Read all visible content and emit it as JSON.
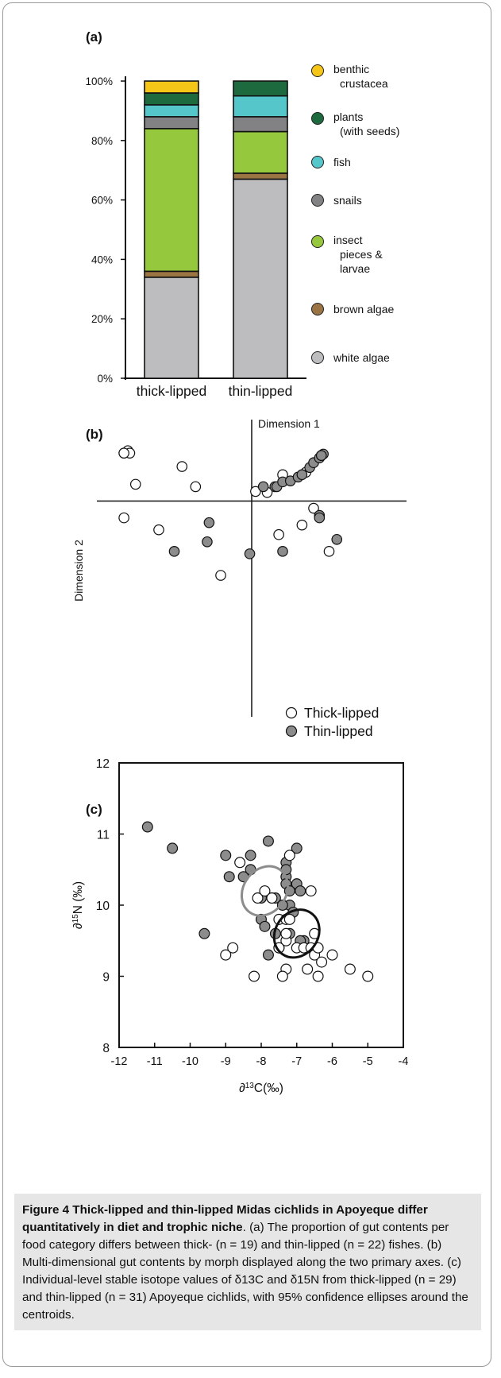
{
  "panels": {
    "a": "(a)",
    "b": "(b)",
    "c": "(c)"
  },
  "chart_data": [
    {
      "type": "bar",
      "stacked": true,
      "categories": [
        "thick-lipped",
        "thin-lipped"
      ],
      "yticks": [
        "0%",
        "20%",
        "40%",
        "60%",
        "80%",
        "100%"
      ],
      "ylim": [
        0,
        100
      ],
      "series": [
        {
          "name": "white algae",
          "color": "#bdbdbf",
          "values": [
            34,
            67
          ]
        },
        {
          "name": "brown algae",
          "color": "#9a7443",
          "values": [
            2,
            2
          ]
        },
        {
          "name": "insect pieces & larvae",
          "color": "#95c83c",
          "values": [
            48,
            14
          ]
        },
        {
          "name": "snails",
          "color": "#828284",
          "values": [
            4,
            5
          ]
        },
        {
          "name": "fish",
          "color": "#55c6c9",
          "values": [
            4,
            7
          ]
        },
        {
          "name": "plants (with seeds)",
          "color": "#1e6a3f",
          "values": [
            4,
            5
          ]
        },
        {
          "name": "benthic crustacea",
          "color": "#f5c518",
          "values": [
            4,
            0
          ]
        }
      ],
      "legend": [
        {
          "lines": [
            "benthic",
            "crustacea"
          ],
          "color": "#f5c518"
        },
        {
          "lines": [
            "plants",
            "(with seeds)"
          ],
          "color": "#1e6a3f"
        },
        {
          "lines": [
            "fish"
          ],
          "color": "#55c6c9"
        },
        {
          "lines": [
            "snails"
          ],
          "color": "#828284"
        },
        {
          "lines": [
            "insect",
            "pieces &",
            "larvae"
          ],
          "color": "#95c83c"
        },
        {
          "lines": [
            "brown algae"
          ],
          "color": "#9a7443"
        },
        {
          "lines": [
            "white algae"
          ],
          "color": "#bdbdbf"
        }
      ],
      "legend_position": "right"
    },
    {
      "type": "scatter",
      "xlabel": "Dimension 1",
      "ylabel": "Dimension 2",
      "xlim": [
        -4,
        4
      ],
      "ylim": [
        -4.5,
        1.5
      ],
      "legend_position": "bottom-right",
      "series": [
        {
          "name": "Thick-lipped",
          "fill": "#ffffff",
          "x": [
            -3.3,
            -3.2,
            -3.15,
            -3.3,
            -3.0,
            -1.8,
            -1.45,
            -3.3,
            -2.4,
            -0.8,
            0.1,
            0.4,
            0.8,
            1.4,
            1.6,
            1.3,
            0.7,
            2.0
          ],
          "y": [
            1.0,
            1.05,
            1.0,
            1.0,
            0.35,
            0.72,
            0.3,
            -0.35,
            -0.6,
            -1.55,
            0.2,
            0.18,
            0.55,
            0.6,
            -0.15,
            -0.5,
            -0.7,
            -1.05
          ]
        },
        {
          "name": "Thin-lipped",
          "fill": "#8c8c8c",
          "x": [
            0.3,
            0.6,
            0.65,
            0.8,
            1.0,
            1.2,
            1.3,
            1.5,
            1.6,
            1.75,
            1.8,
            1.85,
            1.8,
            1.75,
            1.75,
            -1.1,
            -2.0,
            -1.15,
            -0.05,
            0.8,
            2.2
          ],
          "y": [
            0.3,
            0.3,
            0.3,
            0.4,
            0.42,
            0.5,
            0.55,
            0.7,
            0.8,
            0.9,
            0.95,
            0.98,
            0.95,
            -0.3,
            -0.35,
            -0.45,
            -1.05,
            -0.85,
            -1.1,
            -1.05,
            -0.8
          ]
        }
      ]
    },
    {
      "type": "scatter",
      "xlabel": "∂13C(‰)",
      "ylabel": "∂15N (‰)",
      "xlim": [
        -12,
        -4
      ],
      "ylim": [
        8,
        12
      ],
      "xticks": [
        -12,
        -11,
        -10,
        -9,
        -8,
        -7,
        -6,
        -5,
        -4
      ],
      "yticks": [
        8,
        9,
        10,
        11,
        12
      ],
      "series": [
        {
          "name": "Thick-lipped",
          "fill": "#ffffff",
          "x": [
            -8.6,
            -9.0,
            -8.8,
            -8.2,
            -8.1,
            -7.9,
            -7.7,
            -7.5,
            -7.3,
            -7.3,
            -7.5,
            -7.3,
            -7.2,
            -7.0,
            -6.8,
            -6.6,
            -6.5,
            -6.7,
            -6.4,
            -6.5,
            -6.4,
            -6.3,
            -6.0,
            -5.5,
            -5.0,
            -7.4,
            -7.3,
            -6.6,
            -7.2
          ],
          "y": [
            10.6,
            9.3,
            9.4,
            9.0,
            10.1,
            10.2,
            10.1,
            9.8,
            9.8,
            9.5,
            9.4,
            9.1,
            10.7,
            9.4,
            9.4,
            9.4,
            9.6,
            9.1,
            9.0,
            9.3,
            9.4,
            9.2,
            9.3,
            9.1,
            9.0,
            9.0,
            9.6,
            10.2,
            9.8
          ]
        },
        {
          "name": "Thin-lipped",
          "fill": "#8c8c8c",
          "x": [
            -11.2,
            -10.5,
            -9.6,
            -9.0,
            -8.9,
            -8.5,
            -8.3,
            -8.3,
            -8.0,
            -7.9,
            -7.8,
            -7.7,
            -7.6,
            -7.6,
            -7.5,
            -7.3,
            -7.3,
            -7.3,
            -7.3,
            -7.2,
            -7.1,
            -7.0,
            -7.0,
            -6.9,
            -6.8,
            -6.9,
            -7.8,
            -8.0,
            -7.2,
            -7.4,
            -7.2
          ],
          "y": [
            11.1,
            10.8,
            9.6,
            10.7,
            10.4,
            10.4,
            10.7,
            10.5,
            9.8,
            9.7,
            10.9,
            10.1,
            9.6,
            10.1,
            9.4,
            10.6,
            10.4,
            10.3,
            10.5,
            10.0,
            9.9,
            10.8,
            10.3,
            10.2,
            9.5,
            9.5,
            9.3,
            10.1,
            10.2,
            10.0,
            9.6
          ]
        }
      ],
      "ellipses": [
        {
          "name": "Thin-lipped",
          "color": "#8c8c8c",
          "cx": -7.9,
          "cy": 10.2,
          "rx": 0.6,
          "ry": 0.23,
          "angle_deg": -35
        },
        {
          "name": "Thick-lipped",
          "color": "#111111",
          "cx": -7.0,
          "cy": 9.6,
          "rx": 0.6,
          "ry": 0.22,
          "angle_deg": -35
        }
      ]
    }
  ],
  "caption": {
    "title": "Figure 4 Thick-lipped and thin-lipped Midas cichlids in Apoyeque differ quantitatively in diet and trophic niche",
    "body": ". (a) The proportion of gut contents per food category differs between thick- (n = 19) and thin-lipped (n = 22) fishes. (b) Multi-dimensional gut contents by morph displayed along the two primary axes. (c) Individual-level stable isotope values of δ13C and δ15N from thick-lipped (n = 29) and thin-lipped (n = 31) Apoyeque cichlids, with 95% confidence ellipses around the centroids."
  }
}
